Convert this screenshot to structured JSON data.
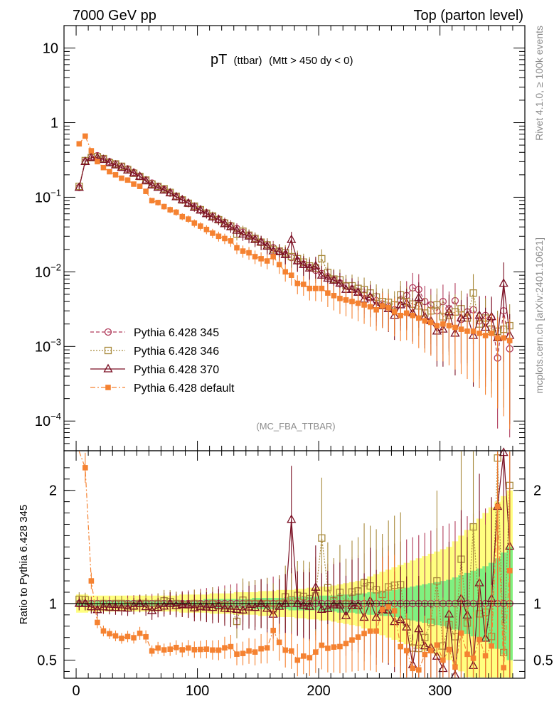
{
  "header": {
    "left": "7000 GeV pp",
    "right": "Top (parton level)"
  },
  "side_text": {
    "rivet": "Rivet 4.1.0, ≥ 100k events",
    "mcplots": "mcplots.cern.ch [arXiv:2401.10621]"
  },
  "watermark": "(MC_FBA_TTBAR)",
  "colors": {
    "p345": "#b03a5a",
    "p346": "#a88a3c",
    "p370": "#7a0f23",
    "default": "#f58231",
    "band_yellow": "#ffff80",
    "band_green": "#80f080"
  },
  "chart_data": [
    {
      "type": "line",
      "title": "pT (ttbar) (Mtt > 450 dy < 0)",
      "title_main": "pT",
      "title_sub1": "(ttbar)",
      "title_sub2": "(Mtt > 450 dy < 0)",
      "xlabel": "",
      "ylabel": "",
      "yscale": "log",
      "xlim": [
        -10,
        370
      ],
      "ylim": [
        4e-05,
        20
      ],
      "yticks": [
        {
          "value": 10,
          "mantissa": "10",
          "exp": ""
        },
        {
          "value": 1,
          "mantissa": "1",
          "exp": ""
        },
        {
          "value": 0.1,
          "mantissa": "10",
          "exp": "−1"
        },
        {
          "value": 0.01,
          "mantissa": "10",
          "exp": "−2"
        },
        {
          "value": 0.001,
          "mantissa": "10",
          "exp": "−3"
        },
        {
          "value": 0.0001,
          "mantissa": "10",
          "exp": "−4"
        }
      ],
      "legend": [
        {
          "key": "p345",
          "label": "Pythia 6.428 345",
          "marker": "circle",
          "dash": "5,3"
        },
        {
          "key": "p346",
          "label": "Pythia 6.428 346",
          "marker": "square",
          "dash": "2,2"
        },
        {
          "key": "p370",
          "label": "Pythia 6.428 370",
          "marker": "triangle",
          "dash": ""
        },
        {
          "key": "default",
          "label": "Pythia 6.428 default",
          "marker": "filled-square",
          "dash": "7,3,2,3"
        }
      ],
      "legend_position": "bottom-left",
      "x_centers": [
        2.5,
        7.5,
        12.5,
        17.5,
        22.5,
        27.5,
        32.5,
        37.5,
        42.5,
        47.5,
        52.5,
        57.5,
        62.5,
        67.5,
        72.5,
        77.5,
        82.5,
        87.5,
        92.5,
        97.5,
        102.5,
        107.5,
        112.5,
        117.5,
        122.5,
        127.5,
        132.5,
        137.5,
        142.5,
        147.5,
        152.5,
        157.5,
        162.5,
        167.5,
        172.5,
        177.5,
        182.5,
        187.5,
        192.5,
        197.5,
        202.5,
        207.5,
        212.5,
        217.5,
        222.5,
        227.5,
        232.5,
        237.5,
        242.5,
        247.5,
        252.5,
        257.5,
        262.5,
        267.5,
        272.5,
        277.5,
        282.5,
        287.5,
        292.5,
        297.5,
        302.5,
        307.5,
        312.5,
        317.5,
        322.5,
        327.5,
        332.5,
        337.5,
        342.5,
        347.5,
        352.5,
        357.5
      ],
      "series": {
        "p345": [
          0.135,
          0.3,
          0.35,
          0.36,
          0.33,
          0.3,
          0.28,
          0.26,
          0.24,
          0.215,
          0.19,
          0.17,
          0.155,
          0.14,
          0.127,
          0.114,
          0.103,
          0.093,
          0.084,
          0.076,
          0.069,
          0.062,
          0.056,
          0.051,
          0.046,
          0.042,
          0.038,
          0.034,
          0.031,
          0.028,
          0.025,
          0.023,
          0.021,
          0.019,
          0.017,
          0.0155,
          0.014,
          0.0127,
          0.0115,
          0.0105,
          0.0095,
          0.0086,
          0.0078,
          0.0071,
          0.0065,
          0.0059,
          0.0054,
          0.0049,
          0.0045,
          0.0041,
          0.0037,
          0.0034,
          0.0031,
          0.0042,
          0.0048,
          0.0061,
          0.0058,
          0.004,
          0.0036,
          0.003,
          0.004,
          0.0032,
          0.0041,
          0.0023,
          0.0029,
          0.0031,
          0.0022,
          0.0026,
          0.0024,
          0.0007,
          0.003,
          0.00093
        ],
        "p346": [
          0.14,
          0.31,
          0.34,
          0.35,
          0.33,
          0.29,
          0.28,
          0.26,
          0.235,
          0.21,
          0.19,
          0.17,
          0.15,
          0.14,
          0.13,
          0.116,
          0.103,
          0.092,
          0.083,
          0.076,
          0.068,
          0.061,
          0.056,
          0.05,
          0.045,
          0.041,
          0.032,
          0.035,
          0.031,
          0.028,
          0.025,
          0.023,
          0.02,
          0.019,
          0.018,
          0.016,
          0.015,
          0.0135,
          0.012,
          0.0112,
          0.015,
          0.0098,
          0.008,
          0.0078,
          0.0065,
          0.0065,
          0.006,
          0.0058,
          0.0052,
          0.0046,
          0.004,
          0.0039,
          0.0036,
          0.0049,
          0.004,
          0.0037,
          0.0035,
          0.0028,
          0.003,
          0.0036,
          0.0025,
          0.0026,
          0.0029,
          0.0032,
          0.0024,
          0.0052,
          0.002,
          0.0024,
          0.0017,
          0.0016,
          0.0017,
          0.0019
        ],
        "p370": [
          0.135,
          0.3,
          0.34,
          0.34,
          0.32,
          0.29,
          0.27,
          0.25,
          0.23,
          0.21,
          0.19,
          0.165,
          0.145,
          0.135,
          0.124,
          0.114,
          0.101,
          0.092,
          0.083,
          0.073,
          0.067,
          0.06,
          0.054,
          0.05,
          0.044,
          0.04,
          0.036,
          0.032,
          0.03,
          0.027,
          0.025,
          0.022,
          0.019,
          0.0185,
          0.017,
          0.027,
          0.014,
          0.0125,
          0.0112,
          0.012,
          0.009,
          0.0082,
          0.0077,
          0.007,
          0.0058,
          0.0058,
          0.0053,
          0.0043,
          0.0046,
          0.0036,
          0.0035,
          0.0032,
          0.0026,
          0.0036,
          0.0038,
          0.0028,
          0.0045,
          0.0025,
          0.0022,
          0.0016,
          0.0017,
          0.0029,
          0.0015,
          0.0024,
          0.0026,
          0.0014,
          0.0026,
          0.0018,
          0.0025,
          0.0013,
          0.007,
          0.0014
        ],
        "default": [
          0.52,
          0.66,
          0.42,
          0.3,
          0.25,
          0.22,
          0.2,
          0.18,
          0.17,
          0.15,
          0.14,
          0.12,
          0.09,
          0.085,
          0.075,
          0.068,
          0.063,
          0.055,
          0.051,
          0.045,
          0.041,
          0.037,
          0.033,
          0.03,
          0.028,
          0.026,
          0.021,
          0.019,
          0.018,
          0.016,
          0.015,
          0.014,
          0.016,
          0.0125,
          0.01,
          0.009,
          0.007,
          0.0068,
          0.006,
          0.006,
          0.006,
          0.0052,
          0.0048,
          0.0044,
          0.0042,
          0.004,
          0.0038,
          0.0036,
          0.0034,
          0.0031,
          0.0035,
          0.0033,
          0.0029,
          0.0026,
          0.0028,
          0.0026,
          0.0024,
          0.0022,
          0.0021,
          0.0019,
          0.002,
          0.0019,
          0.0018,
          0.0017,
          0.0016,
          0.0016,
          0.0015,
          0.0014,
          0.0015,
          0.0013,
          0.0013,
          0.0012
        ]
      }
    },
    {
      "type": "line",
      "title": "",
      "xlabel": "",
      "ylabel": "Ratio to Pythia 6.428 345",
      "xlim": [
        -10,
        370
      ],
      "ylim": [
        0.34,
        2.35
      ],
      "xticks": [
        0,
        100,
        200,
        300
      ],
      "yticks": [
        0.5,
        1,
        2
      ],
      "reference_line": 1,
      "band_yellow_halfwidth": [
        0.08,
        0.08,
        0.07,
        0.07,
        0.07,
        0.07,
        0.07,
        0.07,
        0.07,
        0.07,
        0.07,
        0.07,
        0.07,
        0.07,
        0.07,
        0.07,
        0.07,
        0.08,
        0.08,
        0.08,
        0.08,
        0.08,
        0.09,
        0.09,
        0.09,
        0.09,
        0.1,
        0.1,
        0.1,
        0.1,
        0.11,
        0.11,
        0.11,
        0.12,
        0.12,
        0.12,
        0.13,
        0.13,
        0.14,
        0.14,
        0.15,
        0.15,
        0.16,
        0.17,
        0.18,
        0.19,
        0.2,
        0.22,
        0.24,
        0.26,
        0.28,
        0.3,
        0.32,
        0.34,
        0.36,
        0.38,
        0.4,
        0.42,
        0.44,
        0.46,
        0.48,
        0.5,
        0.55,
        0.6,
        0.65,
        0.7,
        0.75,
        0.8,
        0.85,
        0.9,
        0.95,
        1.0
      ],
      "band_green_halfwidth": [
        0.03,
        0.03,
        0.03,
        0.03,
        0.03,
        0.03,
        0.03,
        0.03,
        0.03,
        0.03,
        0.03,
        0.03,
        0.03,
        0.03,
        0.03,
        0.03,
        0.03,
        0.03,
        0.03,
        0.03,
        0.03,
        0.04,
        0.04,
        0.04,
        0.04,
        0.04,
        0.04,
        0.04,
        0.04,
        0.05,
        0.05,
        0.05,
        0.05,
        0.05,
        0.05,
        0.06,
        0.06,
        0.06,
        0.06,
        0.06,
        0.07,
        0.07,
        0.07,
        0.08,
        0.08,
        0.08,
        0.09,
        0.09,
        0.1,
        0.1,
        0.11,
        0.11,
        0.12,
        0.13,
        0.14,
        0.15,
        0.16,
        0.17,
        0.18,
        0.19,
        0.2,
        0.21,
        0.23,
        0.25,
        0.27,
        0.29,
        0.31,
        0.33,
        0.36,
        0.4,
        0.45,
        0.5
      ]
    }
  ]
}
